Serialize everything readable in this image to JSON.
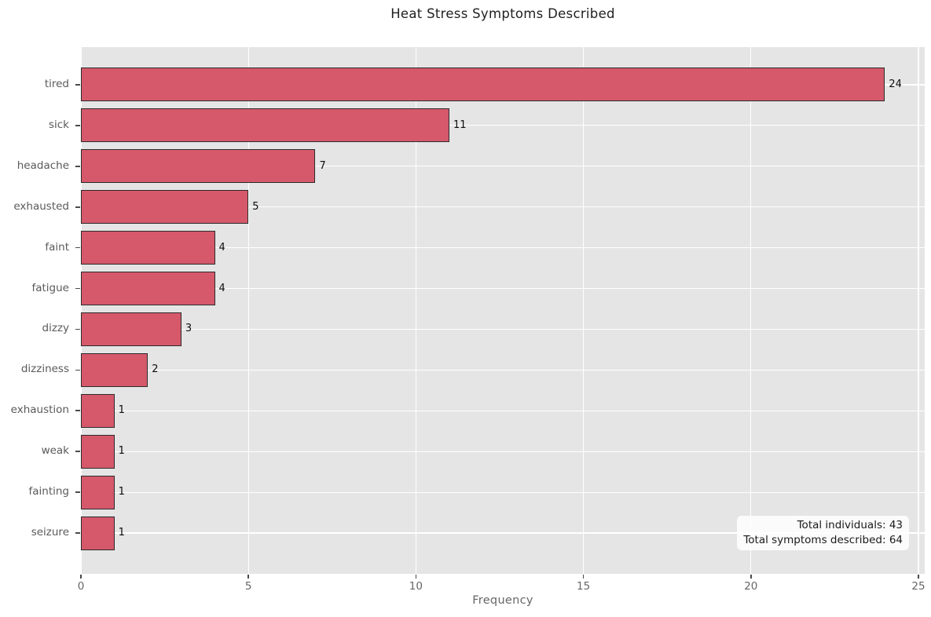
{
  "chart_data": {
    "type": "bar",
    "orientation": "horizontal",
    "title": "Heat Stress Symptoms Described",
    "xlabel": "Frequency",
    "ylabel": "",
    "categories": [
      "tired",
      "sick",
      "headache",
      "exhausted",
      "faint",
      "fatigue",
      "dizzy",
      "dizziness",
      "exhaustion",
      "weak",
      "fainting",
      "seizure"
    ],
    "values": [
      24,
      11,
      7,
      5,
      4,
      4,
      3,
      2,
      1,
      1,
      1,
      1
    ],
    "xticks": [
      0,
      5,
      10,
      15,
      20,
      25
    ],
    "xlim": [
      0,
      25.2
    ],
    "grid": true,
    "legend": "none",
    "colors": {
      "bar_fill": "#d5596b",
      "bar_edge": "#2b2b2b",
      "plot_background": "#e5e5e5",
      "gridline": "#ffffff",
      "title_text": "#1f1f1f",
      "axis_text": "#5a5a5a",
      "value_label_text": "#0d0d0d"
    },
    "annotation": {
      "line1": "Total individuals: 43",
      "line2": "Total symptoms described: 64"
    }
  }
}
